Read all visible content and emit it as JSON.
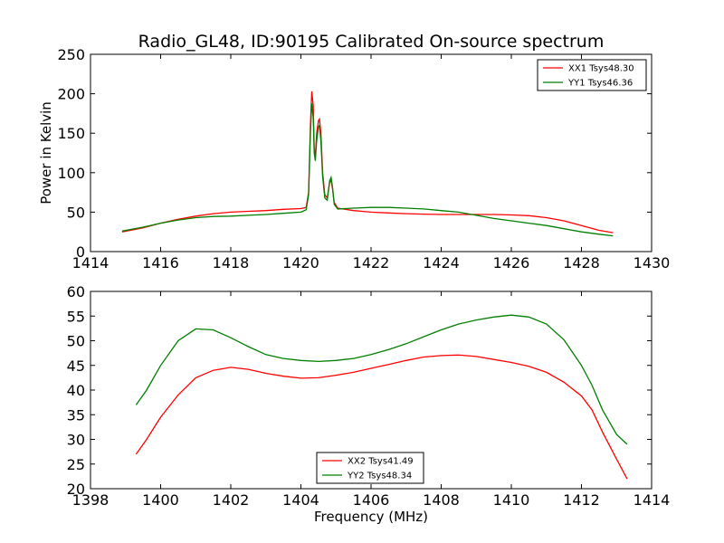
{
  "figure": {
    "title": "Radio_GL48, ID:90195 Calibrated On-source spectrum"
  },
  "chart_data": [
    {
      "type": "line",
      "xlim": [
        1414,
        1430
      ],
      "ylim": [
        0,
        250
      ],
      "xticks": [
        1414,
        1416,
        1418,
        1420,
        1422,
        1424,
        1426,
        1428,
        1430
      ],
      "yticks": [
        0,
        50,
        100,
        150,
        200,
        250
      ],
      "xlabel": "",
      "ylabel": "Power in Kelvin",
      "legend_position": "top-right",
      "grid": false,
      "series": [
        {
          "name": "XX1 Tsys48.30",
          "color": "#ff0000",
          "points": [
            [
              1414.9,
              25
            ],
            [
              1415.5,
              30
            ],
            [
              1416,
              36
            ],
            [
              1416.5,
              41
            ],
            [
              1417,
              45
            ],
            [
              1417.5,
              48
            ],
            [
              1418,
              50
            ],
            [
              1418.5,
              51
            ],
            [
              1419,
              52
            ],
            [
              1419.5,
              53.5
            ],
            [
              1420,
              54.5
            ],
            [
              1420.15,
              56
            ],
            [
              1420.22,
              75
            ],
            [
              1420.27,
              160
            ],
            [
              1420.31,
              203
            ],
            [
              1420.35,
              185
            ],
            [
              1420.38,
              130
            ],
            [
              1420.41,
              120
            ],
            [
              1420.45,
              150
            ],
            [
              1420.5,
              166
            ],
            [
              1420.53,
              168
            ],
            [
              1420.57,
              150
            ],
            [
              1420.62,
              100
            ],
            [
              1420.68,
              72
            ],
            [
              1420.75,
              68
            ],
            [
              1420.82,
              88
            ],
            [
              1420.86,
              90
            ],
            [
              1420.9,
              80
            ],
            [
              1420.95,
              62
            ],
            [
              1421.05,
              55
            ],
            [
              1421.5,
              52
            ],
            [
              1422,
              50
            ],
            [
              1422.5,
              49
            ],
            [
              1423,
              48
            ],
            [
              1423.5,
              47.5
            ],
            [
              1424,
              47
            ],
            [
              1424.5,
              47
            ],
            [
              1425,
              47
            ],
            [
              1425.5,
              47
            ],
            [
              1426,
              46.5
            ],
            [
              1426.5,
              45.5
            ],
            [
              1427,
              43
            ],
            [
              1427.5,
              39
            ],
            [
              1428,
              33
            ],
            [
              1428.5,
              27
            ],
            [
              1428.9,
              24
            ]
          ]
        },
        {
          "name": "YY1 Tsys46.36",
          "color": "#007f00",
          "points": [
            [
              1414.9,
              26
            ],
            [
              1415.5,
              31
            ],
            [
              1416,
              36
            ],
            [
              1416.5,
              40
            ],
            [
              1417,
              43
            ],
            [
              1417.5,
              44.5
            ],
            [
              1418,
              45
            ],
            [
              1418.5,
              46
            ],
            [
              1419,
              47
            ],
            [
              1419.5,
              48.5
            ],
            [
              1420,
              50
            ],
            [
              1420.15,
              53
            ],
            [
              1420.22,
              72
            ],
            [
              1420.27,
              150
            ],
            [
              1420.31,
              188
            ],
            [
              1420.35,
              170
            ],
            [
              1420.38,
              125
            ],
            [
              1420.41,
              115
            ],
            [
              1420.45,
              140
            ],
            [
              1420.5,
              158
            ],
            [
              1420.53,
              160
            ],
            [
              1420.57,
              140
            ],
            [
              1420.62,
              95
            ],
            [
              1420.68,
              68
            ],
            [
              1420.75,
              65
            ],
            [
              1420.82,
              90
            ],
            [
              1420.86,
              94
            ],
            [
              1420.9,
              82
            ],
            [
              1420.95,
              60
            ],
            [
              1421.05,
              54
            ],
            [
              1421.5,
              55
            ],
            [
              1422,
              56
            ],
            [
              1422.5,
              56
            ],
            [
              1423,
              55
            ],
            [
              1423.5,
              54
            ],
            [
              1424,
              52
            ],
            [
              1424.5,
              50
            ],
            [
              1425,
              46
            ],
            [
              1425.5,
              42
            ],
            [
              1426,
              39
            ],
            [
              1426.5,
              36
            ],
            [
              1427,
              33
            ],
            [
              1427.5,
              29
            ],
            [
              1428,
              25
            ],
            [
              1428.5,
              22
            ],
            [
              1428.9,
              20
            ]
          ]
        }
      ]
    },
    {
      "type": "line",
      "xlim": [
        1398,
        1414
      ],
      "ylim": [
        20,
        60
      ],
      "xticks": [
        1398,
        1400,
        1402,
        1404,
        1406,
        1408,
        1410,
        1412,
        1414
      ],
      "yticks": [
        20,
        25,
        30,
        35,
        40,
        45,
        50,
        55,
        60
      ],
      "xlabel": "Frequency (MHz)",
      "ylabel": "",
      "legend_position": "bottom-center",
      "grid": false,
      "series": [
        {
          "name": "XX2 Tsys41.49",
          "color": "#ff0000",
          "points": [
            [
              1399.3,
              27
            ],
            [
              1399.6,
              30
            ],
            [
              1400,
              34.5
            ],
            [
              1400.5,
              39
            ],
            [
              1401,
              42.5
            ],
            [
              1401.5,
              44
            ],
            [
              1402,
              44.6
            ],
            [
              1402.5,
              44.2
            ],
            [
              1403,
              43.4
            ],
            [
              1403.5,
              42.8
            ],
            [
              1404,
              42.4
            ],
            [
              1404.5,
              42.5
            ],
            [
              1405,
              43
            ],
            [
              1405.5,
              43.6
            ],
            [
              1406,
              44.4
            ],
            [
              1406.5,
              45.2
            ],
            [
              1407,
              46
            ],
            [
              1407.5,
              46.7
            ],
            [
              1408,
              47
            ],
            [
              1408.5,
              47.1
            ],
            [
              1409,
              46.8
            ],
            [
              1409.5,
              46.2
            ],
            [
              1410,
              45.6
            ],
            [
              1410.5,
              44.8
            ],
            [
              1411,
              43.6
            ],
            [
              1411.5,
              41.6
            ],
            [
              1412,
              38.8
            ],
            [
              1412.3,
              36
            ],
            [
              1412.6,
              31.5
            ],
            [
              1413,
              26
            ],
            [
              1413.3,
              22
            ]
          ]
        },
        {
          "name": "YY2 Tsys48.34",
          "color": "#007f00",
          "points": [
            [
              1399.3,
              37
            ],
            [
              1399.6,
              40
            ],
            [
              1400,
              45
            ],
            [
              1400.5,
              50
            ],
            [
              1401,
              52.4
            ],
            [
              1401.5,
              52.2
            ],
            [
              1402,
              50.6
            ],
            [
              1402.5,
              48.8
            ],
            [
              1403,
              47.2
            ],
            [
              1403.5,
              46.4
            ],
            [
              1404,
              46
            ],
            [
              1404.5,
              45.8
            ],
            [
              1405,
              46
            ],
            [
              1405.5,
              46.4
            ],
            [
              1406,
              47.2
            ],
            [
              1406.5,
              48.2
            ],
            [
              1407,
              49.4
            ],
            [
              1407.5,
              50.8
            ],
            [
              1408,
              52.2
            ],
            [
              1408.5,
              53.4
            ],
            [
              1409,
              54.2
            ],
            [
              1409.5,
              54.8
            ],
            [
              1410,
              55.2
            ],
            [
              1410.5,
              54.8
            ],
            [
              1411,
              53.4
            ],
            [
              1411.5,
              50.2
            ],
            [
              1412,
              45
            ],
            [
              1412.3,
              41
            ],
            [
              1412.6,
              36
            ],
            [
              1413,
              31
            ],
            [
              1413.3,
              29
            ]
          ]
        }
      ]
    }
  ]
}
